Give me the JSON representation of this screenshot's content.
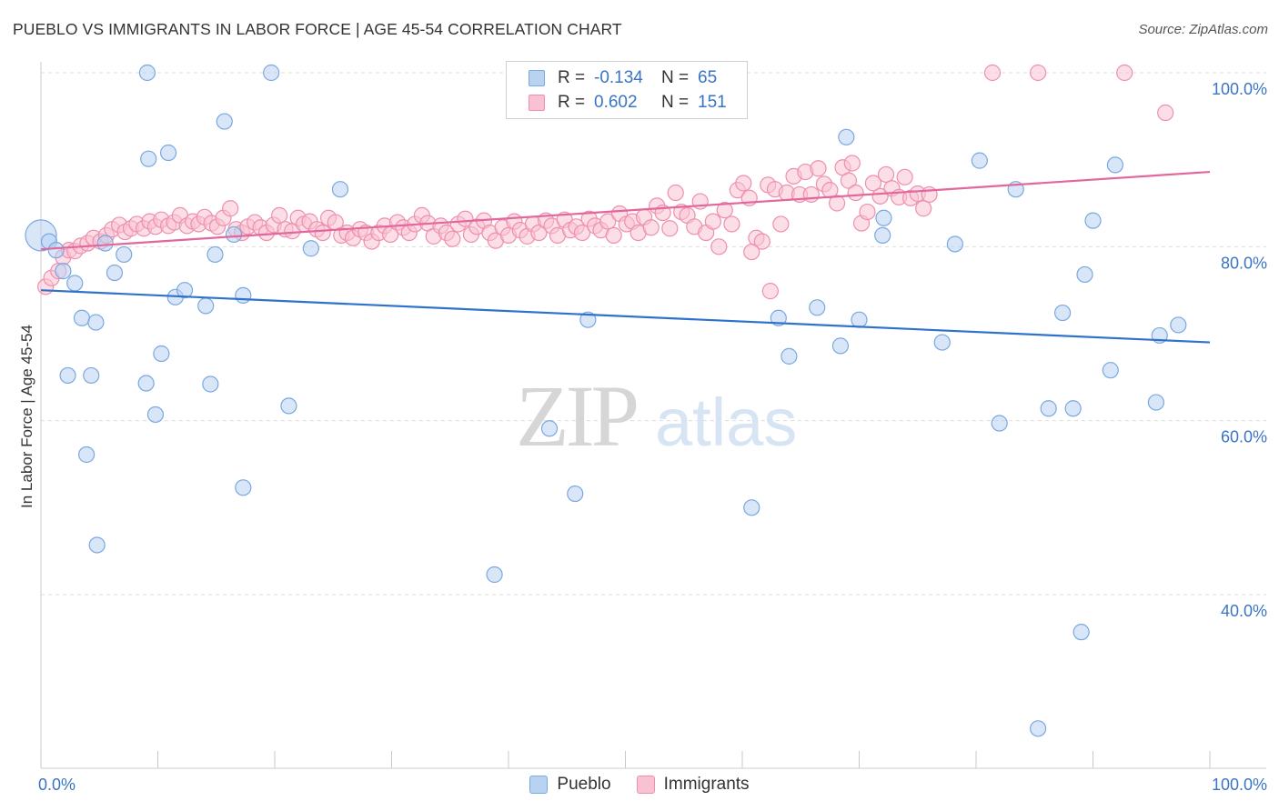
{
  "title": "PUEBLO VS IMMIGRANTS IN LABOR FORCE | AGE 45-54 CORRELATION CHART",
  "source": "Source: ZipAtlas.com",
  "watermark": {
    "zip": "ZIP",
    "atlas": "atlas"
  },
  "colors": {
    "pueblo_fill": "#b8d2f2",
    "pueblo_stroke": "#7aa8e0",
    "pueblo_line": "#2f72cc",
    "immigrants_fill": "#f9c2d3",
    "immigrants_stroke": "#ee8fae",
    "immigrants_line": "#e2679a",
    "axis_label": "#3a74c4",
    "grid": "#dddddd"
  },
  "legend": {
    "pueblo": {
      "r_label": "R =",
      "r_value": "-0.134",
      "n_label": "N =",
      "n_value": "65"
    },
    "immigrants": {
      "r_label": "R =",
      "r_value": "0.602",
      "n_label": "N =",
      "n_value": "151"
    }
  },
  "chart_data": {
    "type": "scatter",
    "title": "PUEBLO VS IMMIGRANTS IN LABOR FORCE | AGE 45-54 CORRELATION CHART",
    "xlabel": "",
    "ylabel": "In Labor Force | Age 45-54",
    "xlim": [
      0,
      100
    ],
    "ylim": [
      20,
      102
    ],
    "x_tick_labels": [
      "0.0%",
      "100.0%"
    ],
    "y_ticks": [
      40,
      60,
      80,
      100
    ],
    "y_tick_labels": [
      "40.0%",
      "60.0%",
      "80.0%",
      "100.0%"
    ],
    "grid": true,
    "legend_position": "top-center",
    "series": [
      {
        "name": "Pueblo",
        "trend": {
          "x": [
            0,
            100
          ],
          "y": [
            75.0,
            69.0
          ]
        },
        "points": [
          [
            0.0,
            81.3
          ],
          [
            0.7,
            80.6
          ],
          [
            1.3,
            79.6
          ],
          [
            1.9,
            77.2
          ],
          [
            2.9,
            75.8
          ],
          [
            3.5,
            71.8
          ],
          [
            2.3,
            65.2
          ],
          [
            4.3,
            65.2
          ],
          [
            3.9,
            56.1
          ],
          [
            4.7,
            71.3
          ],
          [
            5.5,
            80.4
          ],
          [
            6.3,
            77.0
          ],
          [
            7.1,
            79.1
          ],
          [
            9.2,
            90.1
          ],
          [
            9.0,
            64.3
          ],
          [
            9.8,
            60.7
          ],
          [
            10.3,
            67.7
          ],
          [
            10.9,
            90.8
          ],
          [
            11.5,
            74.2
          ],
          [
            12.3,
            75.0
          ],
          [
            14.1,
            73.2
          ],
          [
            14.5,
            64.2
          ],
          [
            14.9,
            79.1
          ],
          [
            15.7,
            94.4
          ],
          [
            16.5,
            81.4
          ],
          [
            17.3,
            74.4
          ],
          [
            17.3,
            52.3
          ],
          [
            21.2,
            61.7
          ],
          [
            23.1,
            79.8
          ],
          [
            25.6,
            86.6
          ],
          [
            4.8,
            45.7
          ],
          [
            9.1,
            100.0
          ],
          [
            19.7,
            100.0
          ],
          [
            38.8,
            42.3
          ],
          [
            43.5,
            59.1
          ],
          [
            45.7,
            51.6
          ],
          [
            46.8,
            71.6
          ],
          [
            47.4,
            100.0
          ],
          [
            59.5,
            100.0
          ],
          [
            60.8,
            50.0
          ],
          [
            63.1,
            71.8
          ],
          [
            64.0,
            67.4
          ],
          [
            66.4,
            73.0
          ],
          [
            68.4,
            68.6
          ],
          [
            68.9,
            92.6
          ],
          [
            70.0,
            71.6
          ],
          [
            72.0,
            81.3
          ],
          [
            72.1,
            83.3
          ],
          [
            78.2,
            80.3
          ],
          [
            77.1,
            69.0
          ],
          [
            80.3,
            89.9
          ],
          [
            82.0,
            59.7
          ],
          [
            83.4,
            86.6
          ],
          [
            85.3,
            24.6
          ],
          [
            86.2,
            61.4
          ],
          [
            87.4,
            72.4
          ],
          [
            88.3,
            61.4
          ],
          [
            89.0,
            35.7
          ],
          [
            89.3,
            76.8
          ],
          [
            90.0,
            83.0
          ],
          [
            91.5,
            65.8
          ],
          [
            91.9,
            89.4
          ],
          [
            95.4,
            62.1
          ],
          [
            95.7,
            69.8
          ],
          [
            97.3,
            71.0
          ]
        ]
      },
      {
        "name": "Immigrants",
        "trend": {
          "x": [
            0,
            100
          ],
          "y": [
            79.7,
            88.6
          ]
        },
        "points": [
          [
            0.4,
            75.4
          ],
          [
            0.9,
            76.4
          ],
          [
            1.5,
            77.2
          ],
          [
            1.9,
            78.8
          ],
          [
            2.4,
            79.6
          ],
          [
            2.9,
            79.5
          ],
          [
            3.4,
            80.1
          ],
          [
            4.0,
            80.4
          ],
          [
            4.5,
            81.0
          ],
          [
            5.1,
            80.6
          ],
          [
            5.6,
            81.3
          ],
          [
            6.1,
            82.0
          ],
          [
            6.7,
            82.5
          ],
          [
            7.2,
            81.7
          ],
          [
            7.7,
            82.1
          ],
          [
            8.2,
            82.6
          ],
          [
            8.8,
            82.1
          ],
          [
            9.3,
            82.9
          ],
          [
            9.8,
            82.3
          ],
          [
            10.3,
            83.1
          ],
          [
            10.9,
            82.4
          ],
          [
            11.4,
            82.8
          ],
          [
            11.9,
            83.6
          ],
          [
            12.5,
            82.4
          ],
          [
            13.0,
            82.9
          ],
          [
            13.5,
            82.6
          ],
          [
            14.0,
            83.4
          ],
          [
            14.6,
            82.7
          ],
          [
            15.1,
            82.3
          ],
          [
            15.6,
            83.3
          ],
          [
            16.2,
            84.4
          ],
          [
            16.7,
            82.0
          ],
          [
            17.2,
            81.6
          ],
          [
            17.7,
            82.3
          ],
          [
            18.3,
            82.8
          ],
          [
            18.8,
            82.2
          ],
          [
            19.3,
            81.6
          ],
          [
            19.9,
            82.5
          ],
          [
            20.4,
            83.6
          ],
          [
            20.9,
            82.0
          ],
          [
            21.5,
            81.8
          ],
          [
            22.0,
            83.3
          ],
          [
            22.5,
            82.6
          ],
          [
            23.0,
            82.9
          ],
          [
            23.6,
            82.0
          ],
          [
            24.1,
            81.6
          ],
          [
            24.6,
            83.3
          ],
          [
            25.2,
            82.8
          ],
          [
            25.7,
            81.3
          ],
          [
            26.2,
            81.6
          ],
          [
            26.7,
            81.0
          ],
          [
            27.3,
            82.0
          ],
          [
            27.8,
            81.6
          ],
          [
            28.3,
            80.6
          ],
          [
            28.9,
            81.6
          ],
          [
            29.4,
            82.4
          ],
          [
            29.9,
            81.4
          ],
          [
            30.5,
            82.8
          ],
          [
            31.0,
            82.2
          ],
          [
            31.5,
            81.6
          ],
          [
            32.0,
            82.6
          ],
          [
            32.6,
            83.6
          ],
          [
            33.1,
            82.7
          ],
          [
            33.6,
            81.2
          ],
          [
            34.2,
            82.4
          ],
          [
            34.7,
            81.6
          ],
          [
            35.2,
            80.9
          ],
          [
            35.7,
            82.6
          ],
          [
            36.3,
            83.2
          ],
          [
            36.8,
            81.4
          ],
          [
            37.3,
            82.3
          ],
          [
            37.9,
            83.0
          ],
          [
            38.4,
            81.6
          ],
          [
            38.9,
            80.7
          ],
          [
            39.5,
            82.2
          ],
          [
            40.0,
            81.3
          ],
          [
            40.5,
            82.9
          ],
          [
            41.0,
            81.9
          ],
          [
            41.6,
            81.2
          ],
          [
            42.1,
            82.6
          ],
          [
            42.6,
            81.6
          ],
          [
            43.2,
            83.0
          ],
          [
            43.7,
            82.4
          ],
          [
            44.2,
            81.3
          ],
          [
            44.8,
            83.1
          ],
          [
            45.3,
            81.9
          ],
          [
            45.8,
            82.3
          ],
          [
            46.3,
            81.6
          ],
          [
            46.9,
            83.2
          ],
          [
            47.4,
            82.4
          ],
          [
            47.9,
            81.9
          ],
          [
            48.5,
            82.9
          ],
          [
            49.0,
            81.3
          ],
          [
            49.5,
            83.8
          ],
          [
            50.1,
            82.6
          ],
          [
            50.6,
            82.9
          ],
          [
            51.1,
            81.6
          ],
          [
            51.6,
            83.4
          ],
          [
            52.2,
            82.2
          ],
          [
            52.7,
            84.7
          ],
          [
            53.2,
            83.9
          ],
          [
            53.8,
            82.1
          ],
          [
            54.3,
            86.2
          ],
          [
            54.8,
            84.0
          ],
          [
            55.3,
            83.6
          ],
          [
            55.9,
            82.3
          ],
          [
            56.4,
            85.2
          ],
          [
            56.9,
            81.6
          ],
          [
            57.5,
            82.9
          ],
          [
            58.0,
            80.0
          ],
          [
            58.5,
            84.2
          ],
          [
            59.1,
            82.6
          ],
          [
            59.6,
            86.5
          ],
          [
            60.1,
            87.3
          ],
          [
            60.6,
            85.6
          ],
          [
            61.2,
            81.0
          ],
          [
            61.7,
            80.6
          ],
          [
            62.2,
            87.1
          ],
          [
            62.8,
            86.6
          ],
          [
            63.3,
            82.6
          ],
          [
            63.8,
            86.2
          ],
          [
            64.4,
            88.1
          ],
          [
            64.9,
            86.0
          ],
          [
            65.4,
            88.6
          ],
          [
            65.9,
            86.0
          ],
          [
            66.5,
            89.0
          ],
          [
            67.0,
            87.2
          ],
          [
            67.5,
            86.5
          ],
          [
            68.1,
            85.0
          ],
          [
            68.6,
            89.1
          ],
          [
            69.1,
            87.6
          ],
          [
            69.7,
            86.2
          ],
          [
            70.2,
            82.7
          ],
          [
            70.7,
            84.0
          ],
          [
            71.2,
            87.3
          ],
          [
            71.8,
            85.8
          ],
          [
            72.3,
            88.3
          ],
          [
            72.8,
            86.7
          ],
          [
            73.4,
            85.7
          ],
          [
            73.9,
            88.0
          ],
          [
            74.4,
            85.6
          ],
          [
            75.0,
            86.1
          ],
          [
            75.5,
            84.4
          ],
          [
            76.0,
            86.0
          ],
          [
            81.4,
            100.0
          ],
          [
            85.3,
            100.0
          ],
          [
            92.7,
            100.0
          ],
          [
            96.2,
            95.4
          ],
          [
            69.4,
            89.6
          ],
          [
            60.8,
            79.4
          ],
          [
            62.4,
            74.9
          ]
        ]
      }
    ]
  }
}
